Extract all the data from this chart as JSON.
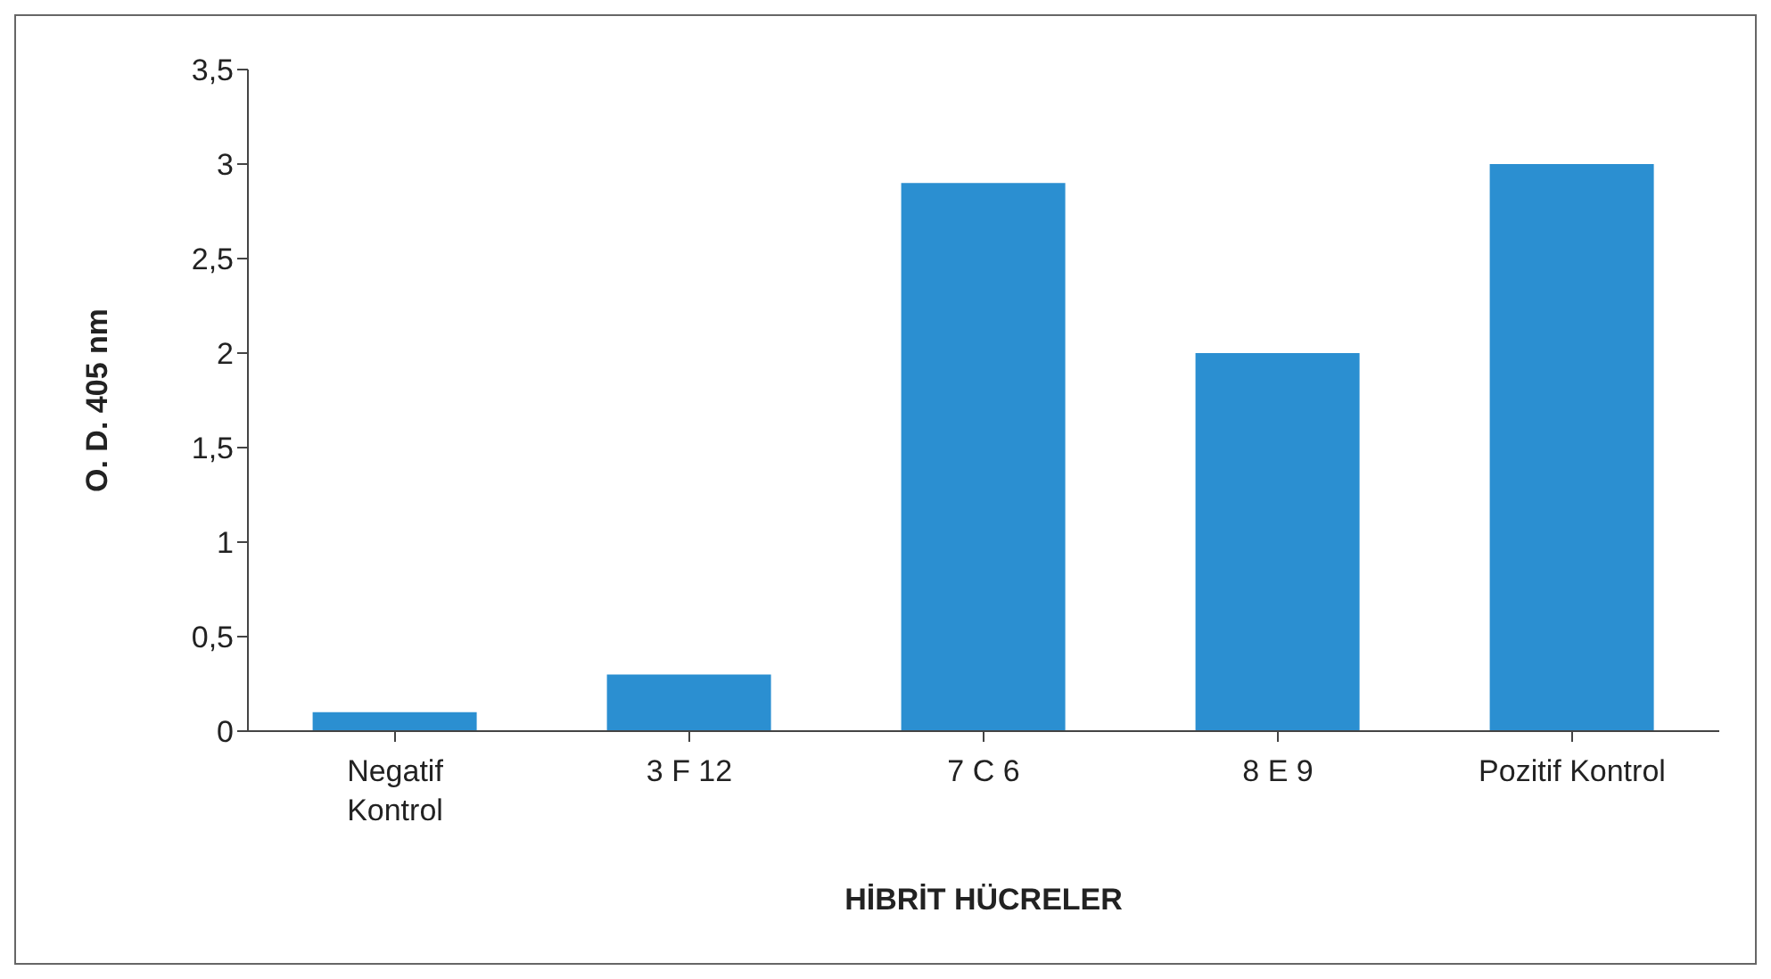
{
  "chart_data": {
    "type": "bar",
    "xlabel": "HİBRİT HÜCRELER",
    "ylabel": "O. D. 405 nm",
    "categories": [
      "Negatif Kontrol",
      "3 F 12",
      "7 C 6",
      "8 E 9",
      "Pozitif Kontrol"
    ],
    "values": [
      0.1,
      0.3,
      2.9,
      2.0,
      3.0
    ],
    "color": "#2b8fd1",
    "ylim": [
      0,
      3.5
    ],
    "yticks": [
      0,
      {
        "value": 0.5,
        "label": "0,5"
      },
      1,
      {
        "value": 1.5,
        "label": "1,5"
      },
      2,
      {
        "value": 2.5,
        "label": "2,5"
      },
      3,
      {
        "value": 3.5,
        "label": "3,5"
      }
    ],
    "grid": false,
    "legend": false
  }
}
